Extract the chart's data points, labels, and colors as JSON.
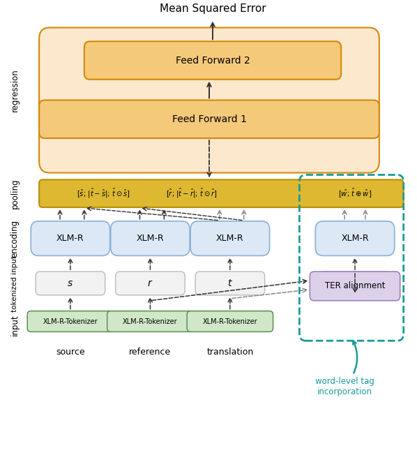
{
  "title": "Mean Squared Error",
  "bg_color": "#ffffff",
  "teal_color": "#1a9a9a",
  "orange_box_fill": "#f5c97a",
  "orange_box_edge": "#d4880a",
  "orange_bg_fill": "#fce8cc",
  "orange_bg_edge": "#d4880a",
  "yellow_fill": "#ddb830",
  "yellow_edge": "#b89000",
  "blue_fill": "#dce8f5",
  "blue_edge": "#8ab0d8",
  "gray_fill": "#f2f2f2",
  "gray_edge": "#bbbbbb",
  "green_fill": "#d0e8c8",
  "green_edge": "#5a9050",
  "purple_fill": "#ddd0ea",
  "purple_edge": "#9b80bf",
  "xlm_labels": [
    "XLM-R",
    "XLM-R",
    "XLM-R",
    "XLM-R"
  ],
  "tok_labels": [
    "XLM-R-Tokenizer",
    "XLM-R-Tokenizer",
    "XLM-R-Tokenizer"
  ],
  "input_labels": [
    "source",
    "reference",
    "translation"
  ],
  "pool_s": "[$\\hat{s}$; $|\\hat{t}-\\hat{s}|$; $\\hat{t}\\odot\\hat{s}$]",
  "pool_r": "[$\\hat{r}$; $|\\hat{t}-\\hat{r}|$; $\\hat{t}\\odot\\hat{r}$]",
  "pool_w": "[$\\hat{w}$; $\\hat{t}\\oplus\\hat{w}$]",
  "ff1_label": "Feed Forward 1",
  "ff2_label": "Feed Forward 2",
  "ter_label": "TER alignment",
  "annotation": "word-level tag\nincorporation",
  "reg_label": "regression",
  "pool_label": "pooling",
  "enc_label": "encoding",
  "tokinp_label": "tokenized input",
  "inp_label": "input"
}
